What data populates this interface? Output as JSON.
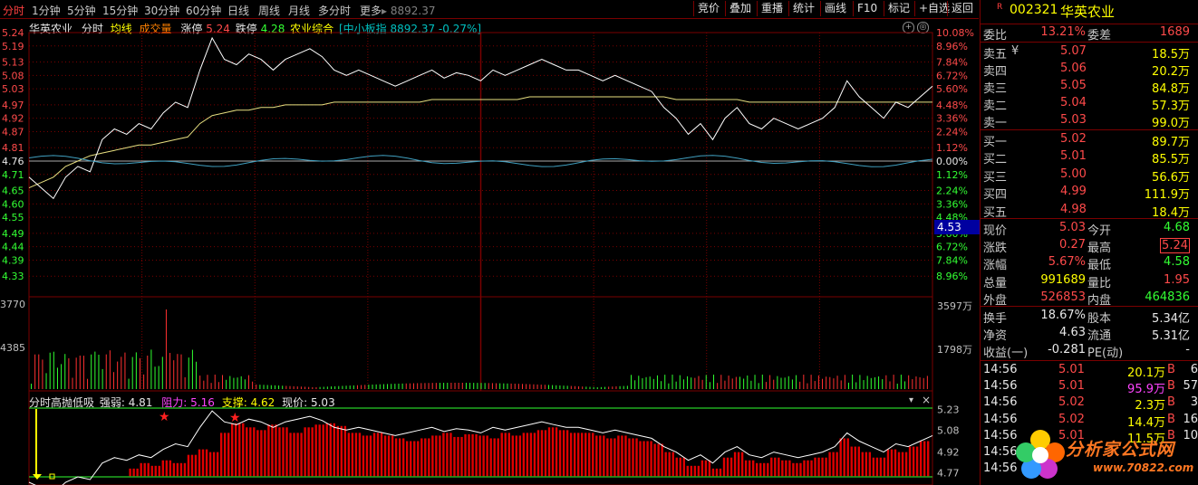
{
  "toolbar": {
    "periods": [
      "分时",
      "1分钟",
      "5分钟",
      "15分钟",
      "30分钟",
      "60分钟",
      "日线",
      "周线",
      "月线",
      "多分时",
      "更多"
    ],
    "more_value": "8892.37",
    "buttons": [
      "竞价",
      "叠加",
      "重播",
      "统计",
      "画线",
      "F10",
      "标记",
      "+自选",
      "返回"
    ]
  },
  "chart": {
    "stock_name": "华英农业",
    "mode_label": "分时",
    "avg_label": "均线",
    "volume_label": "成交量",
    "limit_up_label": "涨停",
    "limit_up_value": "5.24",
    "limit_down_label": "跌停",
    "limit_down_value": "4.28",
    "sector_label": "农业综合",
    "index_label": "[中小板指 8892.37 -0.27%]",
    "price_ticks": [
      "5.24",
      "5.19",
      "5.13",
      "5.08",
      "5.03",
      "4.97",
      "4.92",
      "4.87",
      "4.81",
      "4.76",
      "4.71",
      "4.65",
      "4.60",
      "4.55",
      "4.49",
      "4.44",
      "4.39",
      "4.33"
    ],
    "pct_ticks": [
      "10.08%",
      "8.96%",
      "7.84%",
      "6.72%",
      "5.60%",
      "4.48%",
      "3.36%",
      "2.24%",
      "1.12%",
      "0.00%",
      "1.12%",
      "2.24%",
      "3.36%",
      "4.48%",
      "5.60%",
      "6.72%",
      "7.84%",
      "8.96%"
    ],
    "cursor_price": "4.53",
    "vol_left_top": "3770",
    "vol_left_mid": "4385",
    "vol_right_top": "3597万",
    "vol_right_mid": "1798万",
    "indicator": {
      "name": "分时高抛低吸",
      "strength_label": "强弱:",
      "strength_value": "4.81",
      "resist_label": "阻力:",
      "resist_value": "5.16",
      "support_label": "支撑:",
      "support_value": "4.62",
      "price_label": "现价:",
      "price_value": "5.03",
      "ticks": [
        "5.23",
        "5.08",
        "4.92",
        "4.77"
      ]
    }
  },
  "chart_data": {
    "type": "line",
    "title": "",
    "xlabel": "",
    "ylabel": "",
    "prev_close": 4.76,
    "ylim": [
      4.28,
      5.24
    ],
    "series": [
      {
        "values": [
          4.7,
          4.66,
          4.62,
          4.7,
          4.74,
          4.72,
          4.84,
          4.88,
          4.86,
          4.9,
          4.88,
          4.94,
          4.98,
          4.96,
          5.1,
          5.22,
          5.14,
          5.12,
          5.16,
          5.14,
          5.1,
          5.14,
          5.16,
          5.18,
          5.15,
          5.1,
          5.08,
          5.1,
          5.08,
          5.06,
          5.04,
          5.06,
          5.08,
          5.1,
          5.07,
          5.09,
          5.08,
          5.06,
          5.1,
          5.08,
          5.1,
          5.12,
          5.14,
          5.12,
          5.1,
          5.1,
          5.08,
          5.06,
          5.08,
          5.06,
          5.04,
          5.02,
          4.96,
          4.92,
          4.86,
          4.9,
          4.84,
          4.92,
          4.96,
          4.9,
          4.88,
          4.92,
          4.9,
          4.88,
          4.9,
          4.92,
          4.96,
          5.06,
          5.0,
          4.96,
          4.92,
          4.98,
          4.96,
          5.0,
          5.04
        ]
      },
      {
        "values": [
          4.66,
          4.68,
          4.7,
          4.74,
          4.76,
          4.78,
          4.79,
          4.8,
          4.81,
          4.82,
          4.82,
          4.83,
          4.84,
          4.85,
          4.9,
          4.93,
          4.94,
          4.95,
          4.95,
          4.96,
          4.96,
          4.97,
          4.97,
          4.97,
          4.97,
          4.98,
          4.98,
          4.98,
          4.98,
          4.98,
          4.98,
          4.98,
          4.98,
          4.99,
          4.99,
          4.99,
          4.99,
          4.99,
          4.99,
          4.99,
          4.99,
          5.0,
          5.0,
          5.0,
          5.0,
          5.0,
          5.0,
          5.0,
          5.0,
          5.0,
          5.0,
          5.0,
          5.0,
          4.99,
          4.99,
          4.99,
          4.99,
          4.99,
          4.99,
          4.98,
          4.98,
          4.98,
          4.98,
          4.98,
          4.98,
          4.98,
          4.98,
          4.98,
          4.98,
          4.98,
          4.98,
          4.98,
          4.98,
          4.98,
          4.98
        ]
      }
    ]
  },
  "quote": {
    "market_tag": "R",
    "code": "002321",
    "name": "华英农业",
    "weibi_label": "委比",
    "weibi_value": "13.21%",
    "weicha_label": "委差",
    "weicha_value": "1689",
    "asks": [
      {
        "label": "卖五",
        "price": "5.07",
        "vol": "18.5万"
      },
      {
        "label": "卖四",
        "price": "5.06",
        "vol": "20.2万"
      },
      {
        "label": "卖三",
        "price": "5.05",
        "vol": "84.8万"
      },
      {
        "label": "卖二",
        "price": "5.04",
        "vol": "57.3万"
      },
      {
        "label": "卖一",
        "price": "5.03",
        "vol": "99.0万"
      }
    ],
    "currency_mark": "¥",
    "bids": [
      {
        "label": "买一",
        "price": "5.02",
        "vol": "89.7万"
      },
      {
        "label": "买二",
        "price": "5.01",
        "vol": "85.5万"
      },
      {
        "label": "买三",
        "price": "5.00",
        "vol": "56.6万"
      },
      {
        "label": "买四",
        "price": "4.99",
        "vol": "111.9万"
      },
      {
        "label": "买五",
        "price": "4.98",
        "vol": "18.4万"
      }
    ],
    "stats": [
      {
        "l1": "现价",
        "v1": "5.03",
        "l2": "今开",
        "v2": "4.68"
      },
      {
        "l1": "涨跌",
        "v1": "0.27",
        "l2": "最高",
        "v2": "5.24"
      },
      {
        "l1": "涨幅",
        "v1": "5.67%",
        "l2": "最低",
        "v2": "4.58"
      },
      {
        "l1": "总量",
        "v1": "991689",
        "l2": "量比",
        "v2": "1.95"
      },
      {
        "l1": "外盘",
        "v1": "526853",
        "l2": "内盘",
        "v2": "464836"
      }
    ],
    "stats2": [
      {
        "l1": "换手",
        "v1": "18.67%",
        "l2": "股本",
        "v2": "5.34亿"
      },
      {
        "l1": "净资",
        "v1": "4.63",
        "l2": "流通",
        "v2": "5.31亿"
      },
      {
        "l1": "收益(一)",
        "v1": "-0.281",
        "l2": "PE(动)",
        "v2": "-"
      }
    ],
    "ticks": [
      {
        "time": "14:56",
        "price": "5.01",
        "vol": "20.1万",
        "side": "B",
        "count": "6"
      },
      {
        "time": "14:56",
        "price": "5.01",
        "vol": "95.9万",
        "side": "B",
        "count": "57"
      },
      {
        "time": "14:56",
        "price": "5.02",
        "vol": "2.3万",
        "side": "B",
        "count": "3"
      },
      {
        "time": "14:56",
        "price": "5.02",
        "vol": "14.4万",
        "side": "B",
        "count": "16"
      },
      {
        "time": "14:56",
        "price": "5.01",
        "vol": "11.5万",
        "side": "B",
        "count": "10"
      },
      {
        "time": "14:56",
        "price": "",
        "vol": "",
        "side": "",
        "count": ""
      },
      {
        "time": "14:56",
        "price": "",
        "vol": "",
        "side": "",
        "count": ""
      }
    ]
  },
  "watermark": {
    "text": "分析家公式网",
    "url": "www.70822.com"
  }
}
